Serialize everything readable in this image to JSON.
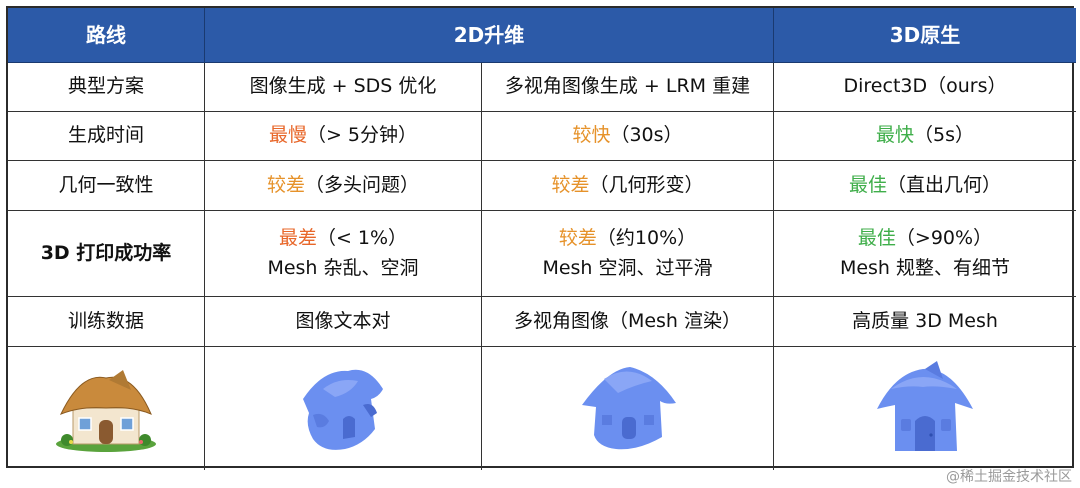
{
  "header": {
    "col_route": "路线",
    "col_2d": "2D升维",
    "col_3d": "3D原生"
  },
  "rows": {
    "scheme": {
      "label": "典型方案",
      "a": "图像生成 + SDS 优化",
      "b": "多视角图像生成 + LRM 重建",
      "c": "Direct3D（ours）"
    },
    "time": {
      "label": "生成时间",
      "a_hl": "最慢",
      "a_rest": "（> 5分钟）",
      "b_hl": "较快",
      "b_rest": "（30s）",
      "c_hl": "最快",
      "c_rest": "（5s）"
    },
    "geometry": {
      "label": "几何一致性",
      "a_hl": "较差",
      "a_rest": "（多头问题）",
      "b_hl": "较差",
      "b_rest": "（几何形变）",
      "c_hl": "最佳",
      "c_rest": "（直出几何）"
    },
    "print": {
      "label": "3D 打印成功率",
      "a_hl": "最差",
      "a_rest": "（< 1%）",
      "a_line2": "Mesh 杂乱、空洞",
      "b_hl": "较差",
      "b_rest": "（约10%）",
      "b_line2": "Mesh 空洞、过平滑",
      "c_hl": "最佳",
      "c_rest": "（>90%）",
      "c_line2": "Mesh 规整、有细节"
    },
    "training": {
      "label": "训练数据",
      "a": "图像文本对",
      "b": "多视角图像（Mesh 渲染）",
      "c": "高质量 3D Mesh"
    }
  },
  "colors": {
    "header_bg": "#2c5aa8",
    "orange": "#e8672a",
    "amber": "#e6922a",
    "green": "#3fae4a",
    "mesh_blue": "#6b8ff0"
  },
  "images": [
    "house-photo",
    "mesh-house-sds",
    "mesh-house-lrm",
    "mesh-house-direct3d"
  ],
  "watermark": "@稀土掘金技术社区"
}
